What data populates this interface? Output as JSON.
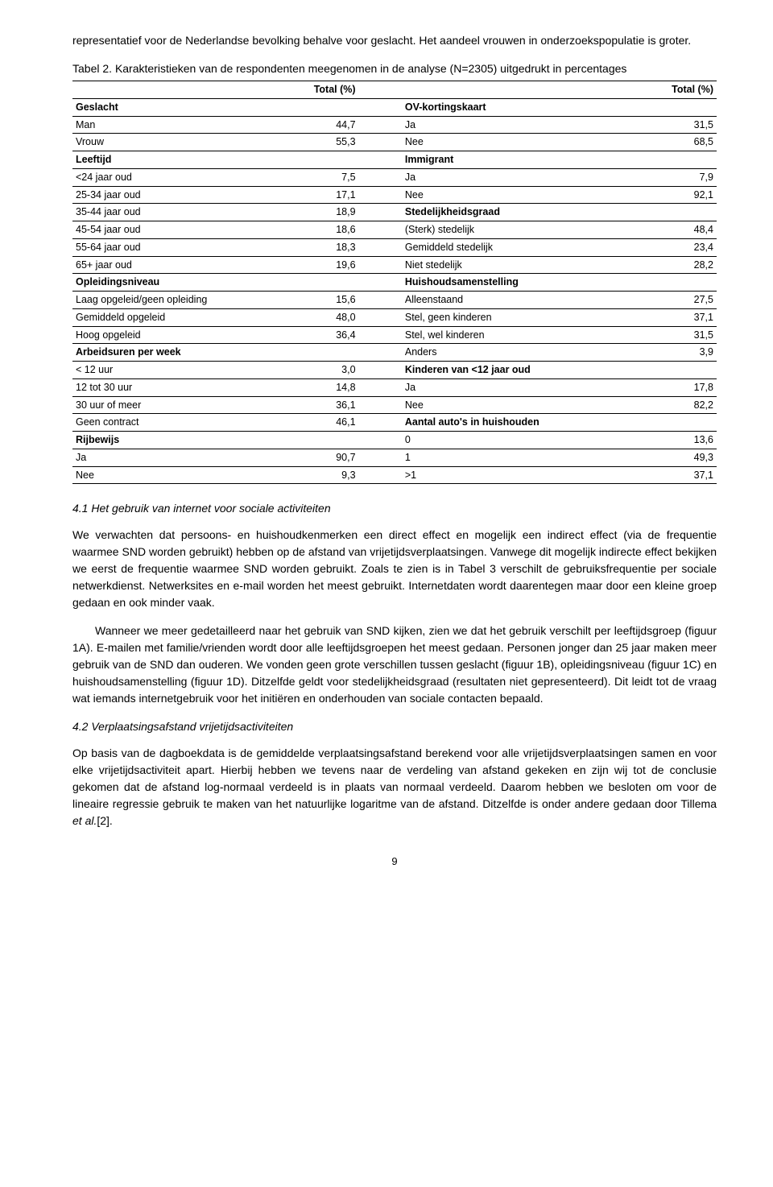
{
  "intro": "representatief voor de Nederlandse bevolking behalve voor geslacht. Het aandeel vrouwen in onderzoekspopulatie is groter.",
  "table_caption_prefix": "Tabel 2. ",
  "table_caption": "Karakteristieken van de respondenten meegenomen in de analyse (N=2305) uitgedrukt in percentages",
  "headers": {
    "total_pct": "Total (%)"
  },
  "left": [
    {
      "label": "Geslacht",
      "bold": true,
      "value": ""
    },
    {
      "label": "Man",
      "value": "44,7"
    },
    {
      "label": "Vrouw",
      "value": "55,3"
    },
    {
      "label": "Leeftijd",
      "bold": true,
      "value": ""
    },
    {
      "label": "<24 jaar oud",
      "value": "7,5"
    },
    {
      "label": "25-34 jaar oud",
      "value": "17,1"
    },
    {
      "label": "35-44 jaar oud",
      "value": "18,9"
    },
    {
      "label": "45-54 jaar oud",
      "value": "18,6"
    },
    {
      "label": "55-64 jaar oud",
      "value": "18,3"
    },
    {
      "label": "65+ jaar oud",
      "value": "19,6"
    },
    {
      "label": "Opleidingsniveau",
      "bold": true,
      "value": ""
    },
    {
      "label": "Laag opgeleid/geen opleiding",
      "value": "15,6"
    },
    {
      "label": "Gemiddeld opgeleid",
      "value": "48,0"
    },
    {
      "label": "Hoog opgeleid",
      "value": "36,4"
    },
    {
      "label": "Arbeidsuren per week",
      "bold": true,
      "value": ""
    },
    {
      "label": "< 12 uur",
      "value": "3,0"
    },
    {
      "label": "12 tot 30 uur",
      "value": "14,8"
    },
    {
      "label": "30 uur of meer",
      "value": "36,1"
    },
    {
      "label": "Geen contract",
      "value": "46,1"
    },
    {
      "label": "Rijbewijs",
      "bold": true,
      "value": ""
    },
    {
      "label": "Ja",
      "value": "90,7"
    },
    {
      "label": "Nee",
      "value": "9,3"
    }
  ],
  "right": [
    {
      "label": "OV-kortingskaart",
      "bold": true,
      "value": ""
    },
    {
      "label": "Ja",
      "value": "31,5"
    },
    {
      "label": "Nee",
      "value": "68,5"
    },
    {
      "label": "Immigrant",
      "bold": true,
      "value": ""
    },
    {
      "label": "Ja",
      "value": "7,9"
    },
    {
      "label": "Nee",
      "value": "92,1"
    },
    {
      "label": "Stedelijkheidsgraad",
      "bold": true,
      "value": ""
    },
    {
      "label": "(Sterk) stedelijk",
      "value": "48,4"
    },
    {
      "label": "Gemiddeld stedelijk",
      "value": "23,4"
    },
    {
      "label": "Niet stedelijk",
      "value": "28,2"
    },
    {
      "label": "Huishoudsamenstelling",
      "bold": true,
      "value": ""
    },
    {
      "label": "Alleenstaand",
      "value": "27,5"
    },
    {
      "label": "Stel, geen kinderen",
      "value": "37,1"
    },
    {
      "label": "Stel, wel kinderen",
      "value": "31,5"
    },
    {
      "label": "Anders",
      "value": "3,9"
    },
    {
      "label": "Kinderen van <12 jaar oud",
      "bold": true,
      "value": ""
    },
    {
      "label": "Ja",
      "value": "17,8"
    },
    {
      "label": "Nee",
      "value": "82,2"
    },
    {
      "label": "Aantal auto's in huishouden",
      "bold": true,
      "value": ""
    },
    {
      "label": "0",
      "value": "13,6"
    },
    {
      "label": "1",
      "value": "49,3"
    },
    {
      "label": ">1",
      "value": "37,1"
    }
  ],
  "section41": "4.1 Het gebruik van internet voor sociale activiteiten",
  "p1": "We verwachten dat persoons- en huishoudkenmerken een direct effect en mogelijk een indirect effect (via de frequentie waarmee SND worden gebruikt) hebben op de afstand van vrijetijdsverplaatsingen. Vanwege dit mogelijk indirecte effect bekijken we eerst de frequentie waarmee SND worden gebruikt. Zoals te zien is in Tabel 3 verschilt de gebruiksfrequentie per sociale netwerkdienst. Netwerksites en e-mail worden het meest gebruikt. Internetdaten wordt daarentegen maar door een kleine groep gedaan en ook minder vaak.",
  "p2": "Wanneer we meer gedetailleerd naar het gebruik van SND kijken, zien we dat het gebruik verschilt per leeftijdsgroep (figuur 1A). E-mailen met familie/vrienden wordt door alle leeftijdsgroepen het meest gedaan. Personen jonger dan 25 jaar maken  meer gebruik van de SND dan ouderen. We vonden geen grote verschillen tussen geslacht (figuur 1B), opleidingsniveau (figuur 1C) en huishoudsamenstelling (figuur 1D). Ditzelfde geldt voor stedelijkheidsgraad (resultaten niet gepresenteerd). Dit leidt tot de vraag wat iemands internetgebruik voor het initiëren en onderhouden van sociale contacten bepaald.",
  "section42": "4.2 Verplaatsingsafstand vrijetijdsactiviteiten",
  "p3_a": "Op basis van de dagboekdata is de gemiddelde verplaatsingsafstand berekend voor alle vrijetijdsverplaatsingen samen en voor elke vrijetijdsactiviteit apart. Hierbij hebben we tevens naar de verdeling van afstand gekeken en zijn wij tot de conclusie gekomen dat de afstand log-normaal verdeeld is in plaats van normaal verdeeld. Daarom hebben we besloten om voor de lineaire regressie gebruik te maken van het natuurlijke logaritme van de afstand. Ditzelfde is onder andere gedaan door Tillema ",
  "p3_cite": "et al.",
  "p3_b": "[2].",
  "page_number": "9"
}
